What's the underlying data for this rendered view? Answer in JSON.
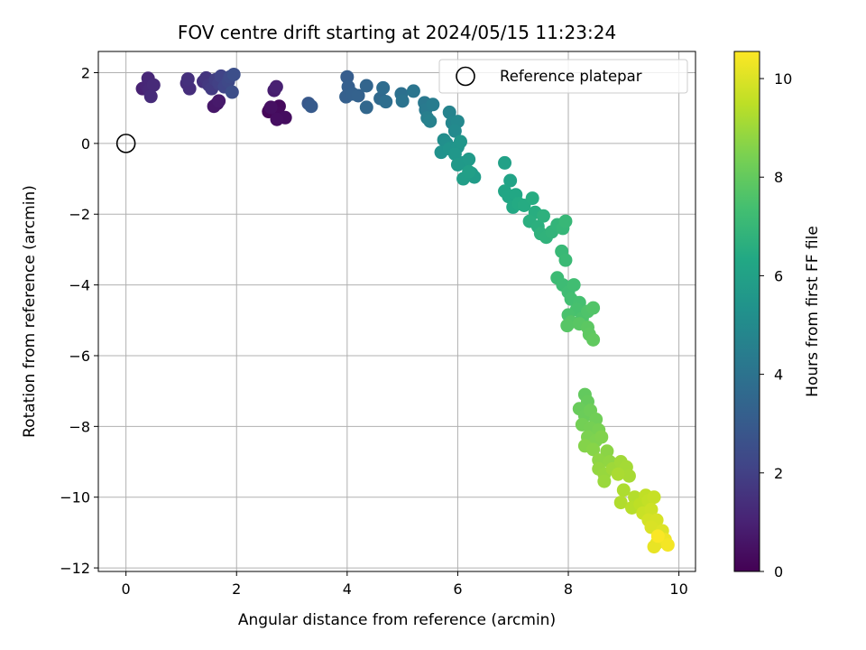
{
  "chart_data": {
    "type": "scatter",
    "title": "FOV centre drift starting at 2024/05/15 11:23:24",
    "xlabel": "Angular distance from reference (arcmin)",
    "ylabel": "Rotation from reference (arcmin)",
    "colorbar_label": "Hours from first FF file",
    "xlim": [
      -0.5,
      10.3
    ],
    "ylim": [
      -12.1,
      2.6
    ],
    "clim": [
      0,
      10.55
    ],
    "xticks": [
      0,
      2,
      4,
      6,
      8,
      10
    ],
    "yticks": [
      -12,
      -10,
      -8,
      -6,
      -4,
      -2,
      0,
      2
    ],
    "cticks": [
      0,
      2,
      4,
      6,
      8,
      10
    ],
    "grid": true,
    "colormap": "viridis",
    "legend": {
      "location": "upper right",
      "label": "Reference platepar"
    },
    "reference_point": {
      "x": 0,
      "y": 0,
      "name": "Reference platepar"
    },
    "points": [
      {
        "x": 2.6,
        "y": 0.96,
        "t": 0.05
      },
      {
        "x": 2.65,
        "y": 1.0,
        "t": 0.1
      },
      {
        "x": 2.58,
        "y": 0.9,
        "t": 0.15
      },
      {
        "x": 2.7,
        "y": 0.95,
        "t": 0.2
      },
      {
        "x": 2.77,
        "y": 1.05,
        "t": 0.25
      },
      {
        "x": 2.75,
        "y": 0.85,
        "t": 0.3
      },
      {
        "x": 2.88,
        "y": 0.73,
        "t": 0.35
      },
      {
        "x": 2.73,
        "y": 0.68,
        "t": 0.4
      },
      {
        "x": 2.62,
        "y": 1.02,
        "t": 0.45
      },
      {
        "x": 1.65,
        "y": 1.13,
        "t": 0.55
      },
      {
        "x": 1.59,
        "y": 1.05,
        "t": 0.65
      },
      {
        "x": 1.68,
        "y": 1.2,
        "t": 0.75
      },
      {
        "x": 2.68,
        "y": 1.5,
        "t": 0.85
      },
      {
        "x": 2.72,
        "y": 1.6,
        "t": 0.95
      },
      {
        "x": 0.3,
        "y": 1.55,
        "t": 1.0
      },
      {
        "x": 0.38,
        "y": 1.62,
        "t": 1.1
      },
      {
        "x": 0.4,
        "y": 1.84,
        "t": 1.15
      },
      {
        "x": 0.42,
        "y": 1.52,
        "t": 1.2
      },
      {
        "x": 0.5,
        "y": 1.65,
        "t": 1.25
      },
      {
        "x": 0.45,
        "y": 1.33,
        "t": 1.3
      },
      {
        "x": 1.1,
        "y": 1.7,
        "t": 1.35
      },
      {
        "x": 1.15,
        "y": 1.55,
        "t": 1.4
      },
      {
        "x": 1.12,
        "y": 1.82,
        "t": 1.45
      },
      {
        "x": 1.4,
        "y": 1.75,
        "t": 1.5
      },
      {
        "x": 1.45,
        "y": 1.85,
        "t": 1.6
      },
      {
        "x": 1.5,
        "y": 1.65,
        "t": 1.7
      },
      {
        "x": 1.55,
        "y": 1.55,
        "t": 1.8
      },
      {
        "x": 1.62,
        "y": 1.8,
        "t": 1.9
      },
      {
        "x": 1.68,
        "y": 1.7,
        "t": 2.0
      },
      {
        "x": 1.72,
        "y": 1.9,
        "t": 2.1
      },
      {
        "x": 1.78,
        "y": 1.6,
        "t": 2.2
      },
      {
        "x": 1.85,
        "y": 1.75,
        "t": 2.3
      },
      {
        "x": 1.88,
        "y": 1.88,
        "t": 2.4
      },
      {
        "x": 1.92,
        "y": 1.45,
        "t": 2.5
      },
      {
        "x": 1.95,
        "y": 1.95,
        "t": 2.55
      },
      {
        "x": 3.3,
        "y": 1.13,
        "t": 2.9
      },
      {
        "x": 3.35,
        "y": 1.05,
        "t": 3.0
      },
      {
        "x": 4.0,
        "y": 1.88,
        "t": 3.1
      },
      {
        "x": 4.02,
        "y": 1.6,
        "t": 3.15
      },
      {
        "x": 3.98,
        "y": 1.32,
        "t": 3.2
      },
      {
        "x": 4.1,
        "y": 1.4,
        "t": 3.25
      },
      {
        "x": 4.2,
        "y": 1.35,
        "t": 3.3
      },
      {
        "x": 4.35,
        "y": 1.63,
        "t": 3.4
      },
      {
        "x": 4.35,
        "y": 1.02,
        "t": 3.5
      },
      {
        "x": 4.6,
        "y": 1.27,
        "t": 3.6
      },
      {
        "x": 4.65,
        "y": 1.57,
        "t": 3.7
      },
      {
        "x": 4.7,
        "y": 1.18,
        "t": 3.8
      },
      {
        "x": 4.98,
        "y": 1.4,
        "t": 3.9
      },
      {
        "x": 5.0,
        "y": 1.2,
        "t": 4.0
      },
      {
        "x": 5.2,
        "y": 1.48,
        "t": 4.1
      },
      {
        "x": 5.4,
        "y": 1.15,
        "t": 4.2
      },
      {
        "x": 5.42,
        "y": 0.95,
        "t": 4.3
      },
      {
        "x": 5.55,
        "y": 1.1,
        "t": 4.4
      },
      {
        "x": 5.45,
        "y": 0.72,
        "t": 4.5
      },
      {
        "x": 5.5,
        "y": 0.63,
        "t": 4.6
      },
      {
        "x": 5.85,
        "y": 0.88,
        "t": 4.7
      },
      {
        "x": 5.9,
        "y": 0.58,
        "t": 4.8
      },
      {
        "x": 6.0,
        "y": 0.62,
        "t": 4.9
      },
      {
        "x": 5.95,
        "y": 0.35,
        "t": 5.0
      },
      {
        "x": 5.75,
        "y": 0.1,
        "t": 5.1
      },
      {
        "x": 5.8,
        "y": 0.0,
        "t": 5.2
      },
      {
        "x": 5.7,
        "y": -0.25,
        "t": 5.3
      },
      {
        "x": 5.85,
        "y": -0.15,
        "t": 5.4
      },
      {
        "x": 6.0,
        "y": -0.1,
        "t": 5.45
      },
      {
        "x": 6.05,
        "y": 0.05,
        "t": 5.5
      },
      {
        "x": 5.95,
        "y": -0.3,
        "t": 5.55
      },
      {
        "x": 6.1,
        "y": -0.55,
        "t": 5.6
      },
      {
        "x": 6.0,
        "y": -0.6,
        "t": 5.65
      },
      {
        "x": 6.2,
        "y": -0.45,
        "t": 5.7
      },
      {
        "x": 6.25,
        "y": -0.85,
        "t": 5.75
      },
      {
        "x": 6.3,
        "y": -0.95,
        "t": 5.8
      },
      {
        "x": 6.1,
        "y": -1.0,
        "t": 5.85
      },
      {
        "x": 6.2,
        "y": -0.8,
        "t": 5.9
      },
      {
        "x": 6.85,
        "y": -0.55,
        "t": 6.0
      },
      {
        "x": 6.95,
        "y": -1.05,
        "t": 6.1
      },
      {
        "x": 6.85,
        "y": -1.35,
        "t": 6.2
      },
      {
        "x": 6.92,
        "y": -1.5,
        "t": 6.25
      },
      {
        "x": 7.05,
        "y": -1.45,
        "t": 6.3
      },
      {
        "x": 7.0,
        "y": -1.8,
        "t": 6.35
      },
      {
        "x": 7.1,
        "y": -1.7,
        "t": 6.4
      },
      {
        "x": 7.2,
        "y": -1.75,
        "t": 6.45
      },
      {
        "x": 7.35,
        "y": -1.55,
        "t": 6.5
      },
      {
        "x": 7.4,
        "y": -1.95,
        "t": 6.55
      },
      {
        "x": 7.3,
        "y": -2.2,
        "t": 6.6
      },
      {
        "x": 7.45,
        "y": -2.35,
        "t": 6.65
      },
      {
        "x": 7.55,
        "y": -2.05,
        "t": 6.7
      },
      {
        "x": 7.5,
        "y": -2.55,
        "t": 6.75
      },
      {
        "x": 7.6,
        "y": -2.65,
        "t": 6.8
      },
      {
        "x": 7.7,
        "y": -2.5,
        "t": 6.85
      },
      {
        "x": 7.8,
        "y": -2.3,
        "t": 6.9
      },
      {
        "x": 7.9,
        "y": -2.4,
        "t": 6.95
      },
      {
        "x": 7.95,
        "y": -2.2,
        "t": 7.0
      },
      {
        "x": 7.88,
        "y": -3.05,
        "t": 7.05
      },
      {
        "x": 7.95,
        "y": -3.3,
        "t": 7.1
      },
      {
        "x": 7.8,
        "y": -3.8,
        "t": 7.15
      },
      {
        "x": 7.9,
        "y": -4.0,
        "t": 7.2
      },
      {
        "x": 8.0,
        "y": -4.2,
        "t": 7.25
      },
      {
        "x": 8.1,
        "y": -4.0,
        "t": 7.3
      },
      {
        "x": 8.05,
        "y": -4.4,
        "t": 7.35
      },
      {
        "x": 8.2,
        "y": -4.5,
        "t": 7.4
      },
      {
        "x": 8.15,
        "y": -4.7,
        "t": 7.45
      },
      {
        "x": 8.0,
        "y": -4.85,
        "t": 7.5
      },
      {
        "x": 8.25,
        "y": -4.95,
        "t": 7.55
      },
      {
        "x": 8.35,
        "y": -4.75,
        "t": 7.6
      },
      {
        "x": 8.45,
        "y": -4.65,
        "t": 7.65
      },
      {
        "x": 8.05,
        "y": -5.05,
        "t": 7.7
      },
      {
        "x": 7.98,
        "y": -5.15,
        "t": 7.75
      },
      {
        "x": 8.2,
        "y": -5.1,
        "t": 7.8
      },
      {
        "x": 8.35,
        "y": -5.2,
        "t": 7.85
      },
      {
        "x": 8.38,
        "y": -5.4,
        "t": 7.9
      },
      {
        "x": 8.45,
        "y": -5.55,
        "t": 7.95
      },
      {
        "x": 8.3,
        "y": -7.1,
        "t": 8.0
      },
      {
        "x": 8.35,
        "y": -7.3,
        "t": 8.05
      },
      {
        "x": 8.2,
        "y": -7.5,
        "t": 8.1
      },
      {
        "x": 8.3,
        "y": -7.7,
        "t": 8.15
      },
      {
        "x": 8.4,
        "y": -7.55,
        "t": 8.2
      },
      {
        "x": 8.5,
        "y": -7.8,
        "t": 8.25
      },
      {
        "x": 8.25,
        "y": -7.95,
        "t": 8.3
      },
      {
        "x": 8.4,
        "y": -8.05,
        "t": 8.35
      },
      {
        "x": 8.55,
        "y": -8.1,
        "t": 8.4
      },
      {
        "x": 8.35,
        "y": -8.3,
        "t": 8.45
      },
      {
        "x": 8.5,
        "y": -8.4,
        "t": 8.5
      },
      {
        "x": 8.6,
        "y": -8.3,
        "t": 8.55
      },
      {
        "x": 8.3,
        "y": -8.55,
        "t": 8.6
      },
      {
        "x": 8.45,
        "y": -8.65,
        "t": 8.65
      },
      {
        "x": 8.7,
        "y": -8.7,
        "t": 8.7
      },
      {
        "x": 8.55,
        "y": -8.95,
        "t": 8.75
      },
      {
        "x": 8.75,
        "y": -9.0,
        "t": 8.8
      },
      {
        "x": 8.55,
        "y": -9.2,
        "t": 8.85
      },
      {
        "x": 8.65,
        "y": -9.35,
        "t": 8.9
      },
      {
        "x": 8.65,
        "y": -9.55,
        "t": 8.95
      },
      {
        "x": 8.8,
        "y": -9.2,
        "t": 9.0
      },
      {
        "x": 8.95,
        "y": -9.0,
        "t": 9.05
      },
      {
        "x": 9.05,
        "y": -9.15,
        "t": 9.1
      },
      {
        "x": 9.1,
        "y": -9.4,
        "t": 9.15
      },
      {
        "x": 8.9,
        "y": -9.35,
        "t": 9.2
      },
      {
        "x": 9.0,
        "y": -9.8,
        "t": 9.25
      },
      {
        "x": 8.95,
        "y": -10.15,
        "t": 9.3
      },
      {
        "x": 9.2,
        "y": -10.0,
        "t": 9.35
      },
      {
        "x": 9.15,
        "y": -10.3,
        "t": 9.4
      },
      {
        "x": 9.3,
        "y": -10.2,
        "t": 9.5
      },
      {
        "x": 9.4,
        "y": -9.95,
        "t": 9.55
      },
      {
        "x": 9.45,
        "y": -10.1,
        "t": 9.6
      },
      {
        "x": 9.55,
        "y": -10.0,
        "t": 9.65
      },
      {
        "x": 9.35,
        "y": -10.45,
        "t": 9.7
      },
      {
        "x": 9.5,
        "y": -10.35,
        "t": 9.75
      },
      {
        "x": 9.45,
        "y": -10.65,
        "t": 9.85
      },
      {
        "x": 9.6,
        "y": -10.65,
        "t": 9.9
      },
      {
        "x": 9.5,
        "y": -10.85,
        "t": 9.95
      },
      {
        "x": 9.7,
        "y": -10.95,
        "t": 10.0
      },
      {
        "x": 9.6,
        "y": -11.3,
        "t": 10.1
      },
      {
        "x": 9.55,
        "y": -11.4,
        "t": 10.2
      },
      {
        "x": 9.75,
        "y": -11.2,
        "t": 10.3
      },
      {
        "x": 9.8,
        "y": -11.35,
        "t": 10.4
      },
      {
        "x": 9.62,
        "y": -11.1,
        "t": 10.5
      }
    ]
  }
}
